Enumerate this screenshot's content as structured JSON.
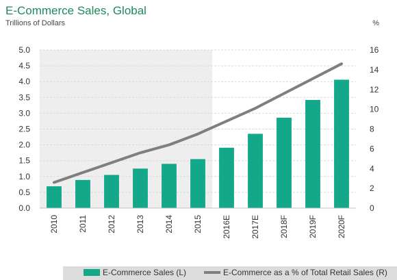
{
  "chart_data": {
    "type": "bar",
    "title": "E-Commerce Sales, Global",
    "subtitle": "Trillions of Dollars",
    "right_axis_unit": "%",
    "categories": [
      "2010",
      "2011",
      "2012",
      "2013",
      "2014",
      "2015",
      "2016E",
      "2017E",
      "2018F",
      "2019F",
      "2020F"
    ],
    "series": [
      {
        "name": "E-Commerce Sales (L)",
        "type": "bar",
        "axis": "left",
        "values": [
          0.69,
          0.89,
          1.05,
          1.25,
          1.4,
          1.55,
          1.91,
          2.35,
          2.86,
          3.42,
          4.06
        ]
      },
      {
        "name": "E-Commerce as a % of Total Retail Sales (R)",
        "type": "line",
        "axis": "right",
        "values": [
          2.6,
          3.6,
          4.6,
          5.6,
          6.4,
          7.5,
          8.8,
          10.1,
          11.6,
          13.1,
          14.6
        ]
      }
    ],
    "left_axis": {
      "ylim": [
        0,
        5
      ],
      "ticks": [
        "0.0",
        "0.5",
        "1.0",
        "1.5",
        "2.0",
        "2.5",
        "3.0",
        "3.5",
        "4.0",
        "4.5",
        "5.0"
      ]
    },
    "right_axis": {
      "ylim": [
        0,
        16
      ],
      "ticks": [
        "0",
        "2",
        "4",
        "6",
        "8",
        "10",
        "12",
        "14",
        "16"
      ]
    },
    "forecast_shading_start": "2016E",
    "grid": true,
    "legend_position": "bottom",
    "colors": {
      "bar": "#14a88a",
      "line": "#7f7f7f",
      "title": "#1f8a5a",
      "grid": "#d9d9d9",
      "forecast_bg": "#ffffff",
      "history_bg": "#eeeeee",
      "legend_bg": "#dcdcdc"
    }
  }
}
